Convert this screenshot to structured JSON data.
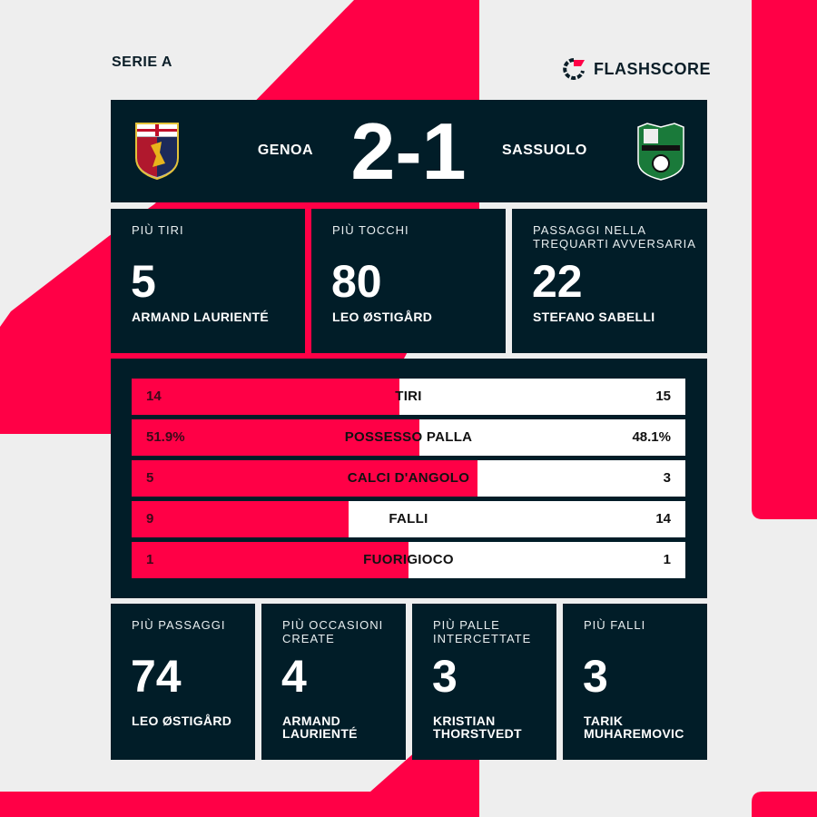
{
  "league": "SERIE A",
  "brand": {
    "name": "FLASHSCORE",
    "icon": "flashscore-logo-icon"
  },
  "colors": {
    "accent": "#ff0046",
    "panel": "#011d28",
    "background": "#eeeeee"
  },
  "match": {
    "home": "GENOA",
    "away": "SASSUOLO",
    "score": "2-1",
    "home_crest": "genoa-crest-icon",
    "away_crest": "sassuolo-crest-icon"
  },
  "top_cards": [
    {
      "label": "PIÙ TIRI",
      "value": "5",
      "player": "ARMAND LAURIENTÉ"
    },
    {
      "label": "PIÙ TOCCHI",
      "value": "80",
      "player": "LEO ØSTIGÅRD"
    },
    {
      "label": "PASSAGGI NELLA TREQUARTI AVVERSARIA",
      "value": "22",
      "player": "STEFANO SABELLI"
    }
  ],
  "stats": [
    {
      "label": "TIRI",
      "home": "14",
      "away": "15",
      "home_share": 48.3
    },
    {
      "label": "POSSESSO PALLA",
      "home": "51.9%",
      "away": "48.1%",
      "home_share": 51.9
    },
    {
      "label": "CALCI D'ANGOLO",
      "home": "5",
      "away": "3",
      "home_share": 62.5
    },
    {
      "label": "FALLI",
      "home": "9",
      "away": "14",
      "home_share": 39.1
    },
    {
      "label": "FUORIGIOCO",
      "home": "1",
      "away": "1",
      "home_share": 50
    }
  ],
  "bottom_cards": [
    {
      "label": "PIÙ PASSAGGI",
      "value": "74",
      "player": "LEO ØSTIGÅRD"
    },
    {
      "label": "PIÙ OCCASIONI CREATE",
      "value": "4",
      "player": "ARMAND LAURIENTÉ"
    },
    {
      "label": "PIÙ PALLE INTERCETTATE",
      "value": "3",
      "player": "KRISTIAN THORSTVEDT"
    },
    {
      "label": "PIÙ FALLI",
      "value": "3",
      "player": "TARIK MUHAREMOVIC"
    }
  ]
}
